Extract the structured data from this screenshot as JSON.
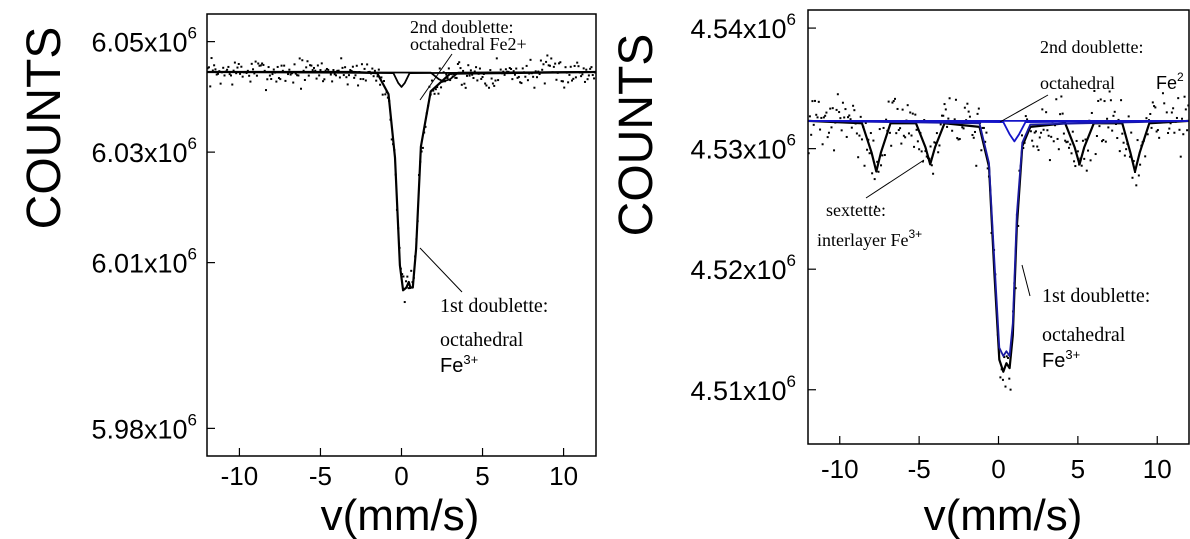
{
  "chart_data": [
    {
      "type": "scatter",
      "xlabel": "v(mm/s)",
      "ylabel": "COUNTS",
      "xlim": [
        -12,
        12
      ],
      "ylim": [
        5975000.0,
        6055000.0
      ],
      "x_ticks": [
        -10,
        -5,
        0,
        5,
        10
      ],
      "x_tick_labels": [
        "-10",
        "-5",
        "0",
        "5",
        "10"
      ],
      "y_ticks": [
        5980000.0,
        6010000.0,
        6030000.0,
        6050000.0
      ],
      "y_tick_labels": [
        {
          "mant": "5.98x10",
          "exp": "6"
        },
        {
          "mant": "6.01x10",
          "exp": "6"
        },
        {
          "mant": "6.03x10",
          "exp": "6"
        },
        {
          "mant": "6.05x10",
          "exp": "6"
        }
      ],
      "grid": false,
      "baseline": 6044500.0,
      "noise": 1600.0,
      "series": [
        {
          "role": "fit",
          "x": [
            -12,
            -3,
            -1.5,
            -0.8,
            -0.4,
            -0.1,
            0.1,
            0.3,
            0.45,
            0.55,
            0.7,
            0.9,
            1.2,
            1.8,
            3,
            12
          ],
          "y": [
            6044500.0,
            6044500.0,
            6044300.0,
            6040500.0,
            6029000.0,
            6009500.0,
            6005000.0,
            6005500.0,
            6006500.0,
            6005500.0,
            6005500.0,
            6012500.0,
            6031000.0,
            6041000.0,
            6044200.0,
            6044500.0
          ],
          "color": "#000000"
        },
        {
          "role": "component",
          "x": [
            -12,
            -0.5,
            -0.2,
            0,
            0.2,
            0.5,
            12
          ],
          "y": [
            6044500.0,
            6044300.0,
            6042500.0,
            6041800.0,
            6042500.0,
            6044300.0,
            6044500.0
          ],
          "color": "#000000"
        },
        {
          "role": "component",
          "x": [
            -12,
            1.8,
            2.3,
            2.6,
            3.0,
            3.5,
            12
          ],
          "y": [
            6044500.0,
            6044400.0,
            6043200.0,
            6042800.0,
            6043200.0,
            6044400.0,
            6044500.0
          ],
          "color": "#000000"
        }
      ],
      "annotations": [
        {
          "line1": "2nd doublette:",
          "line2": "octahedral Fe2+",
          "line3": "",
          "sup": ""
        },
        {
          "line1": "1st doublette:",
          "line2": "octahedral",
          "line3": "Fe",
          "sup": "3+"
        }
      ]
    },
    {
      "type": "scatter",
      "xlabel": "v(mm/s)",
      "ylabel": "COUNTS",
      "xlim": [
        -12,
        12
      ],
      "ylim": [
        4505500.0,
        4541500.0
      ],
      "x_ticks": [
        -10,
        -5,
        0,
        5,
        10
      ],
      "x_tick_labels": [
        "-10",
        "-5",
        "0",
        "5",
        "10"
      ],
      "y_ticks": [
        4510000.0,
        4520000.0,
        4530000.0,
        4540000.0
      ],
      "y_tick_labels": [
        {
          "mant": "4.51x10",
          "exp": "6"
        },
        {
          "mant": "4.52x10",
          "exp": "6"
        },
        {
          "mant": "4.53x10",
          "exp": "6"
        },
        {
          "mant": "4.54x10",
          "exp": "6"
        }
      ],
      "grid": false,
      "baseline": 4532300.0,
      "noise": 1500.0,
      "series": [
        {
          "role": "fit",
          "x": [
            -12,
            -8.6,
            -8.0,
            -7.7,
            -7.4,
            -6.8,
            -5.2,
            -4.6,
            -4.3,
            -4.0,
            -3.4,
            -1.2,
            -0.6,
            -0.25,
            0.05,
            0.3,
            0.5,
            0.7,
            0.9,
            1.15,
            1.5,
            2,
            4.2,
            4.8,
            5.1,
            5.4,
            6,
            7.8,
            8.3,
            8.6,
            8.9,
            9.5,
            12
          ],
          "y": [
            4532300.0,
            4532100.0,
            4529700.0,
            4528100.0,
            4529700.0,
            4532100.0,
            4532100.0,
            4530100.0,
            4528700.0,
            4530100.0,
            4532100.0,
            4531800.0,
            4528500.0,
            4519500.0,
            4512500.0,
            4511500.0,
            4512200.0,
            4511800.0,
            4514500.0,
            4523500.0,
            4530200.0,
            4531800.0,
            4532100.0,
            4530100.0,
            4528700.0,
            4530100.0,
            4532100.0,
            4532100.0,
            4529700.0,
            4528100.0,
            4529700.0,
            4532100.0,
            4532300.0
          ],
          "color": "#000000"
        },
        {
          "role": "component",
          "x": [
            -12,
            -1.2,
            -0.6,
            -0.25,
            0.05,
            0.3,
            0.5,
            0.7,
            0.9,
            1.15,
            1.5,
            2,
            12
          ],
          "y": [
            4532300.0,
            4532100.0,
            4528800.0,
            4520500.0,
            4513500.0,
            4512800.0,
            4513200.0,
            4512800.0,
            4515500.0,
            4524500.0,
            4530500.0,
            4532000.0,
            4532300.0
          ],
          "color": "#1a1aa0"
        },
        {
          "role": "component",
          "x": [
            -12,
            0.3,
            0.7,
            1.0,
            1.3,
            1.7,
            12
          ],
          "y": [
            4532300.0,
            4532200.0,
            4531200.0,
            4530600.0,
            4531200.0,
            4532200.0,
            4532300.0
          ],
          "color": "#1414c8"
        },
        {
          "role": "component",
          "x": [
            -12,
            12
          ],
          "y": [
            4532300.0,
            4532300.0
          ],
          "color": "#1414c8"
        }
      ],
      "annotations": [
        {
          "line1": "2nd doublette:",
          "line2": "octahedral",
          "line3": "Fe",
          "sup": "2"
        },
        {
          "line1": "sextette:",
          "line2": "interlayer Fe",
          "line3": "",
          "sup": "3+"
        },
        {
          "line1": "1st doublette:",
          "line2": "octahedral",
          "line3": "Fe",
          "sup": "3+"
        }
      ]
    }
  ]
}
